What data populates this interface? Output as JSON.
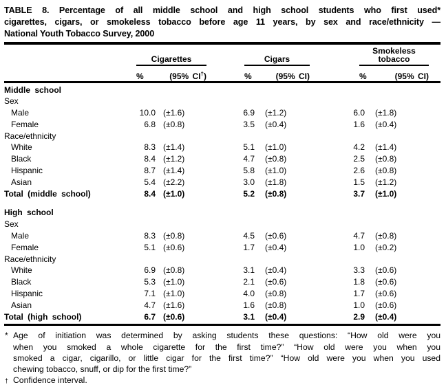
{
  "page": {
    "background": "#ffffff",
    "text_color": "#000000"
  },
  "title": {
    "lines": [
      "TABLE 8. Percentage of all middle school and high school students who first used*",
      "cigarettes, cigars, or smokeless tobacco before age 11 years, by sex and race/ethnicity —",
      "National Youth Tobacco Survey, 2000"
    ]
  },
  "table": {
    "groups": [
      {
        "label": "Cigarettes",
        "pct_header": "%",
        "ci_prefix": "(95% CI",
        "ci_sup": "†",
        "ci_suffix": ")"
      },
      {
        "label": "Cigars",
        "pct_header": "%",
        "ci_prefix": "(95% CI",
        "ci_sup": "",
        "ci_suffix": ")"
      },
      {
        "label": "Smokeless tobacco",
        "pct_header": "%",
        "ci_prefix": "(95% CI",
        "ci_sup": "",
        "ci_suffix": ")"
      }
    ],
    "rows": [
      {
        "type": "section",
        "label": "Middle school"
      },
      {
        "type": "subhead",
        "label": "Sex"
      },
      {
        "type": "data",
        "label": "Male",
        "values": [
          "10.0",
          "(±1.6)",
          "6.9",
          "(±1.2)",
          "6.0",
          "(±1.8)"
        ]
      },
      {
        "type": "data",
        "label": "Female",
        "values": [
          "6.8",
          "(±0.8)",
          "3.5",
          "(±0.4)",
          "1.6",
          "(±0.4)"
        ]
      },
      {
        "type": "subhead",
        "label": "Race/ethnicity"
      },
      {
        "type": "data",
        "label": "White",
        "values": [
          "8.3",
          "(±1.4)",
          "5.1",
          "(±1.0)",
          "4.2",
          "(±1.4)"
        ]
      },
      {
        "type": "data",
        "label": "Black",
        "values": [
          "8.4",
          "(±1.2)",
          "4.7",
          "(±0.8)",
          "2.5",
          "(±0.8)"
        ]
      },
      {
        "type": "data",
        "label": "Hispanic",
        "values": [
          "8.7",
          "(±1.4)",
          "5.8",
          "(±1.0)",
          "2.6",
          "(±0.8)"
        ]
      },
      {
        "type": "data",
        "label": "Asian",
        "values": [
          "5.4",
          "(±2.2)",
          "3.0",
          "(±1.8)",
          "1.5",
          "(±1.2)"
        ]
      },
      {
        "type": "total",
        "label": "Total (middle school)",
        "values": [
          "8.4",
          "(±1.0)",
          "5.2",
          "(±0.8)",
          "3.7",
          "(±1.0)"
        ]
      },
      {
        "type": "section",
        "gap_before": true,
        "label": "High school"
      },
      {
        "type": "subhead",
        "label": "Sex"
      },
      {
        "type": "data",
        "label": "Male",
        "values": [
          "8.3",
          "(±0.8)",
          "4.5",
          "(±0.6)",
          "4.7",
          "(±0.8)"
        ]
      },
      {
        "type": "data",
        "label": "Female",
        "values": [
          "5.1",
          "(±0.6)",
          "1.7",
          "(±0.4)",
          "1.0",
          "(±0.2)"
        ]
      },
      {
        "type": "subhead",
        "label": "Race/ethnicity"
      },
      {
        "type": "data",
        "label": "White",
        "values": [
          "6.9",
          "(±0.8)",
          "3.1",
          "(±0.4)",
          "3.3",
          "(±0.6)"
        ]
      },
      {
        "type": "data",
        "label": "Black",
        "values": [
          "5.3",
          "(±1.0)",
          "2.1",
          "(±0.6)",
          "1.8",
          "(±0.6)"
        ]
      },
      {
        "type": "data",
        "label": "Hispanic",
        "values": [
          "7.1",
          "(±1.0)",
          "4.0",
          "(±0.8)",
          "1.7",
          "(±0.6)"
        ]
      },
      {
        "type": "data",
        "label": "Asian",
        "values": [
          "4.7",
          "(±1.6)",
          "1.6",
          "(±0.8)",
          "1.0",
          "(±0.6)"
        ]
      },
      {
        "type": "total",
        "label": "Total (high school)",
        "values": [
          "6.7",
          "(±0.6)",
          "3.1",
          "(±0.4)",
          "2.9",
          "(±0.4)"
        ]
      }
    ]
  },
  "footnotes": {
    "asterisk": {
      "marker": "*",
      "lines": [
        "Age of initiation was determined by asking students these questions: “How old were you",
        "when you smoked a whole cigarette for the first time?” “How old were you when you",
        "smoked a cigar, cigarillo, or little cigar for the first time?” “How old were you when you used",
        "chewing tobacco, snuff, or dip for the first time?”"
      ]
    },
    "dagger": {
      "marker": "†",
      "text": "Confidence interval."
    }
  }
}
